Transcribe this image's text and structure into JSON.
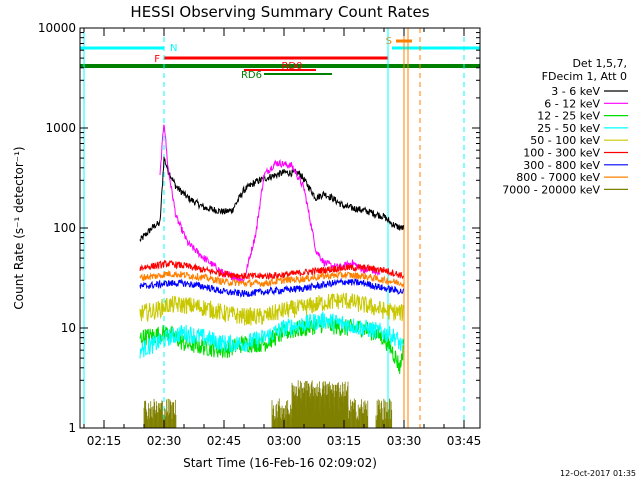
{
  "chart_data": {
    "type": "line",
    "title": "HESSI Observing Summary Count Rates",
    "xlabel": "Start Time (16-Feb-16 02:09:02)",
    "ylabel": "Count Rate (s⁻¹ detector⁻¹)",
    "y_scale": "log",
    "ylim": [
      1,
      10000
    ],
    "xlim": [
      "02:09",
      "03:49"
    ],
    "grid": false,
    "legend_position": "right",
    "x_ticks": [
      "02:15",
      "02:30",
      "02:45",
      "03:00",
      "03:15",
      "03:30",
      "03:45"
    ],
    "y_ticks": [
      "1",
      "10",
      "100",
      "1000",
      "10000"
    ],
    "legend_header": [
      "Det 1,5,7,",
      "FDecim 1, Att 0"
    ],
    "timestamp": "12-Oct-2017 01:35",
    "series": [
      {
        "name": "3 - 6 keV",
        "color": "#000000",
        "times": [
          "02:24",
          "02:27",
          "02:28",
          "02:29",
          "02:30",
          "02:31",
          "02:33",
          "02:36",
          "02:40",
          "02:45",
          "02:47",
          "02:50",
          "02:53",
          "02:56",
          "03:00",
          "03:04",
          "03:08",
          "03:10",
          "03:12",
          "03:15",
          "03:20",
          "03:25",
          "03:27",
          "03:28",
          "03:29",
          "03:30"
        ],
        "values": [
          75,
          100,
          108,
          110,
          500,
          380,
          260,
          200,
          160,
          145,
          150,
          240,
          290,
          320,
          360,
          350,
          200,
          220,
          200,
          165,
          150,
          130,
          110,
          105,
          100,
          100
        ]
      },
      {
        "name": "6 - 12 keV",
        "color": "#ff00ff",
        "times": [
          "02:29",
          "02:30",
          "02:31",
          "02:33",
          "02:36",
          "02:40",
          "02:45",
          "02:50",
          "02:53",
          "02:55",
          "02:58",
          "03:02",
          "03:05",
          "03:08",
          "03:10",
          "03:12",
          "03:14",
          "03:17",
          "03:20",
          "03:22",
          "03:24"
        ],
        "values": [
          330,
          1200,
          400,
          130,
          70,
          50,
          35,
          30,
          90,
          340,
          450,
          420,
          250,
          60,
          45,
          42,
          40,
          45,
          38,
          38,
          34
        ]
      },
      {
        "name": "12 - 25 keV",
        "color": "#00dd00",
        "times": [
          "02:24",
          "02:28",
          "02:31",
          "02:35",
          "02:40",
          "02:45",
          "02:50",
          "02:55",
          "03:00",
          "03:05",
          "03:10",
          "03:15",
          "03:20",
          "03:25",
          "03:27",
          "03:28",
          "03:29",
          "03:30"
        ],
        "values": [
          8,
          8.5,
          9,
          7,
          6.5,
          6,
          7,
          7,
          9,
          10,
          11,
          10,
          10,
          8,
          6,
          5,
          4,
          7
        ]
      },
      {
        "name": "25 - 50 keV",
        "color": "#00ffff",
        "times": [
          "02:24",
          "02:28",
          "02:31",
          "02:35",
          "02:40",
          "02:45",
          "02:50",
          "02:55",
          "03:00",
          "03:05",
          "03:10",
          "03:15",
          "03:20",
          "03:25",
          "03:28",
          "03:30"
        ],
        "values": [
          6,
          7,
          8,
          9,
          8,
          7,
          7,
          8,
          10,
          11,
          12,
          11,
          10,
          9,
          8,
          6
        ]
      },
      {
        "name": "50 - 100 keV",
        "color": "#c8c800",
        "times": [
          "02:24",
          "02:28",
          "02:31",
          "02:35",
          "02:40",
          "02:45",
          "02:50",
          "02:55",
          "03:00",
          "03:05",
          "03:10",
          "03:15",
          "03:20",
          "03:25",
          "03:30"
        ],
        "values": [
          14,
          15,
          17,
          17,
          16,
          14,
          13,
          13,
          15,
          16,
          18,
          19,
          17,
          15,
          14
        ]
      },
      {
        "name": "100 - 300 keV",
        "color": "#ff0000",
        "times": [
          "02:24",
          "02:28",
          "02:31",
          "02:35",
          "02:40",
          "02:45",
          "02:50",
          "02:55",
          "03:00",
          "03:05",
          "03:10",
          "03:15",
          "03:20",
          "03:25",
          "03:30"
        ],
        "values": [
          40,
          42,
          44,
          42,
          38,
          35,
          33,
          33,
          34,
          36,
          38,
          40,
          40,
          38,
          33
        ]
      },
      {
        "name": "300 - 800 keV",
        "color": "#0000ff",
        "times": [
          "02:24",
          "02:28",
          "02:31",
          "02:35",
          "02:40",
          "02:45",
          "02:50",
          "02:55",
          "03:00",
          "03:05",
          "03:10",
          "03:15",
          "03:20",
          "03:25",
          "03:30"
        ],
        "values": [
          26,
          27,
          28,
          28,
          26,
          23,
          22,
          23,
          24,
          25,
          27,
          29,
          28,
          25,
          23
        ]
      },
      {
        "name": "800 - 7000 keV",
        "color": "#ff8000",
        "times": [
          "02:24",
          "02:28",
          "02:31",
          "02:35",
          "02:40",
          "02:45",
          "02:50",
          "02:55",
          "03:00",
          "03:05",
          "03:10",
          "03:15",
          "03:20",
          "03:25",
          "03:30"
        ],
        "values": [
          32,
          33,
          35,
          34,
          32,
          29,
          28,
          28,
          30,
          31,
          33,
          34,
          33,
          30,
          28
        ]
      },
      {
        "name": "7000 - 20000 keV",
        "color": "#808000",
        "bursts": [
          {
            "from": "02:25",
            "to": "02:33",
            "min": 1.2,
            "max": 2
          },
          {
            "from": "02:57",
            "to": "03:21",
            "min": 1.2,
            "max": 2
          },
          {
            "from": "03:02",
            "to": "03:16",
            "min": 2,
            "max": 3
          },
          {
            "from": "03:23",
            "to": "03:27",
            "min": 1.2,
            "max": 2
          }
        ]
      }
    ],
    "state_bars": [
      {
        "label": "N",
        "color": "#00ffff",
        "segments": [
          [
            "02:09",
            "02:30"
          ],
          [
            "03:27",
            "03:49"
          ]
        ]
      },
      {
        "label": "F",
        "color": "#ff0000",
        "segments": [
          [
            "02:30",
            "03:26"
          ]
        ]
      },
      {
        "label": "",
        "color": "#008000",
        "segments": [
          [
            "02:09",
            "03:49"
          ]
        ]
      },
      {
        "label": "RD0",
        "color": "#ff0000",
        "segments": [
          [
            "02:50",
            "03:08"
          ]
        ]
      },
      {
        "label": "RD6",
        "color": "#008000",
        "segments": [
          [
            "02:55",
            "03:12"
          ]
        ]
      },
      {
        "label": "S",
        "color": "#ff8000",
        "segments": [
          [
            "03:28",
            "03:32"
          ]
        ]
      }
    ],
    "vertical_lines": [
      {
        "time": "02:10",
        "color": "#00ffff",
        "dashed": false
      },
      {
        "time": "02:30",
        "color": "#00ffff",
        "dashed": true
      },
      {
        "time": "03:26",
        "color": "#00ffff",
        "dashed": false
      },
      {
        "time": "03:30",
        "color": "#ff8000",
        "dashed": false
      },
      {
        "time": "03:31",
        "color": "#ff8000",
        "dashed": false
      },
      {
        "time": "03:34",
        "color": "#ff8000",
        "dashed": true
      },
      {
        "time": "03:45",
        "color": "#00ffff",
        "dashed": true
      }
    ]
  }
}
